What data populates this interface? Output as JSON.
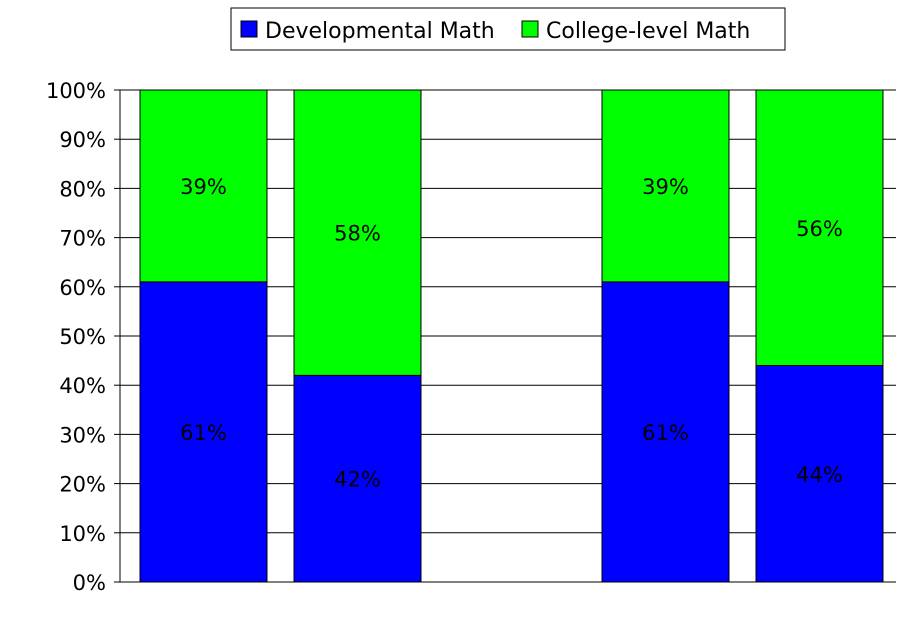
{
  "chart_data": {
    "type": "bar",
    "stacked": true,
    "percent_scale": true,
    "categories": [
      "",
      "",
      "",
      ""
    ],
    "gap_after_index": 1,
    "series": [
      {
        "name": "Developmental Math",
        "color": "#0000FF",
        "values": [
          61,
          42,
          61,
          44
        ],
        "labels": [
          "61%",
          "42%",
          "61%",
          "44%"
        ]
      },
      {
        "name": "College-level Math",
        "color": "#00FF00",
        "values": [
          39,
          58,
          39,
          56
        ],
        "labels": [
          "39%",
          "58%",
          "39%",
          "56%"
        ]
      }
    ],
    "ylim": [
      0,
      100
    ],
    "yticks": [
      "0%",
      "10%",
      "20%",
      "30%",
      "40%",
      "50%",
      "60%",
      "70%",
      "80%",
      "90%",
      "100%"
    ],
    "grid": true,
    "legend": "top-center",
    "title": "",
    "xlabel": "",
    "ylabel": ""
  }
}
